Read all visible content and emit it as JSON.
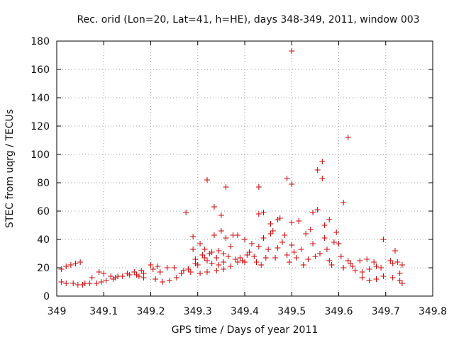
{
  "chart_data": {
    "type": "scatter",
    "title": "Rec. orid (Lon=20, Lat=41, h=HE), days 348-349, 2011, window 003",
    "xlabel": "GPS time / Days of year 2011",
    "ylabel": "STEC from uqrg / TECUs",
    "xlim": [
      349,
      349.8
    ],
    "ylim": [
      0,
      180
    ],
    "x_ticks": [
      349,
      349.1,
      349.2,
      349.3,
      349.4,
      349.5,
      349.6,
      349.7,
      349.8
    ],
    "x_tick_labels": [
      "349",
      "349.1",
      "349.2",
      "349.3",
      "349.4",
      "349.5",
      "349.6",
      "349.7",
      "349.8"
    ],
    "y_ticks": [
      0,
      20,
      40,
      60,
      80,
      100,
      120,
      140,
      160,
      180
    ],
    "y_tick_labels": [
      "0",
      "20",
      "40",
      "60",
      "80",
      "100",
      "120",
      "140",
      "160",
      "180"
    ],
    "grid": true,
    "marker": "+",
    "marker_color": "#cc0000",
    "points": [
      [
        349.01,
        19
      ],
      [
        349.01,
        10
      ],
      [
        349.02,
        21
      ],
      [
        349.02,
        9
      ],
      [
        349.03,
        22
      ],
      [
        349.035,
        9
      ],
      [
        349.04,
        23
      ],
      [
        349.045,
        8
      ],
      [
        349.05,
        24
      ],
      [
        349.055,
        8
      ],
      [
        349.06,
        9
      ],
      [
        349.07,
        9
      ],
      [
        349.075,
        13
      ],
      [
        349.085,
        9
      ],
      [
        349.09,
        17
      ],
      [
        349.095,
        10
      ],
      [
        349.1,
        16
      ],
      [
        349.105,
        11
      ],
      [
        349.115,
        14
      ],
      [
        349.12,
        12
      ],
      [
        349.125,
        13
      ],
      [
        349.13,
        14
      ],
      [
        349.14,
        14
      ],
      [
        349.15,
        16
      ],
      [
        349.155,
        15
      ],
      [
        349.165,
        17
      ],
      [
        349.17,
        15
      ],
      [
        349.175,
        14
      ],
      [
        349.18,
        18
      ],
      [
        349.185,
        16
      ],
      [
        349.185,
        13
      ],
      [
        349.2,
        22
      ],
      [
        349.205,
        19
      ],
      [
        349.21,
        12
      ],
      [
        349.215,
        21
      ],
      [
        349.22,
        17
      ],
      [
        349.225,
        10
      ],
      [
        349.235,
        20
      ],
      [
        349.24,
        11
      ],
      [
        349.25,
        20
      ],
      [
        349.255,
        13
      ],
      [
        349.265,
        16
      ],
      [
        349.27,
        18
      ],
      [
        349.275,
        59
      ],
      [
        349.28,
        19
      ],
      [
        349.285,
        17
      ],
      [
        349.29,
        33
      ],
      [
        349.29,
        42
      ],
      [
        349.295,
        26
      ],
      [
        349.295,
        23
      ],
      [
        349.3,
        22
      ],
      [
        349.305,
        37
      ],
      [
        349.305,
        16
      ],
      [
        349.31,
        29
      ],
      [
        349.315,
        33
      ],
      [
        349.315,
        27
      ],
      [
        349.32,
        82
      ],
      [
        349.32,
        25
      ],
      [
        349.32,
        17
      ],
      [
        349.325,
        30
      ],
      [
        349.33,
        31
      ],
      [
        349.33,
        23
      ],
      [
        349.335,
        63
      ],
      [
        349.335,
        43
      ],
      [
        349.34,
        27
      ],
      [
        349.34,
        18
      ],
      [
        349.345,
        32
      ],
      [
        349.345,
        22
      ],
      [
        349.35,
        57
      ],
      [
        349.35,
        46
      ],
      [
        349.355,
        24
      ],
      [
        349.355,
        30
      ],
      [
        349.355,
        19
      ],
      [
        349.36,
        77
      ],
      [
        349.36,
        41
      ],
      [
        349.365,
        28
      ],
      [
        349.37,
        35
      ],
      [
        349.37,
        21
      ],
      [
        349.375,
        43
      ],
      [
        349.38,
        26
      ],
      [
        349.385,
        43
      ],
      [
        349.385,
        24
      ],
      [
        349.39,
        27
      ],
      [
        349.395,
        25
      ],
      [
        349.4,
        40
      ],
      [
        349.4,
        24
      ],
      [
        349.405,
        29
      ],
      [
        349.41,
        31
      ],
      [
        349.415,
        37
      ],
      [
        349.42,
        28
      ],
      [
        349.425,
        24
      ],
      [
        349.43,
        77
      ],
      [
        349.43,
        58
      ],
      [
        349.43,
        35
      ],
      [
        349.435,
        22
      ],
      [
        349.44,
        59
      ],
      [
        349.44,
        41
      ],
      [
        349.445,
        27
      ],
      [
        349.45,
        33
      ],
      [
        349.455,
        51
      ],
      [
        349.455,
        44
      ],
      [
        349.46,
        46
      ],
      [
        349.465,
        27
      ],
      [
        349.47,
        54
      ],
      [
        349.47,
        34
      ],
      [
        349.475,
        55
      ],
      [
        349.48,
        38
      ],
      [
        349.485,
        43
      ],
      [
        349.49,
        83
      ],
      [
        349.49,
        29
      ],
      [
        349.495,
        24
      ],
      [
        349.5,
        173
      ],
      [
        349.5,
        79
      ],
      [
        349.5,
        52
      ],
      [
        349.5,
        36
      ],
      [
        349.505,
        31
      ],
      [
        349.51,
        27
      ],
      [
        349.515,
        53
      ],
      [
        349.52,
        33
      ],
      [
        349.525,
        22
      ],
      [
        349.53,
        44
      ],
      [
        349.535,
        26
      ],
      [
        349.54,
        47
      ],
      [
        349.545,
        59
      ],
      [
        349.545,
        37
      ],
      [
        349.55,
        28
      ],
      [
        349.555,
        89
      ],
      [
        349.555,
        61
      ],
      [
        349.56,
        30
      ],
      [
        349.565,
        95
      ],
      [
        349.565,
        83
      ],
      [
        349.57,
        50
      ],
      [
        349.57,
        41
      ],
      [
        349.575,
        33
      ],
      [
        349.58,
        54
      ],
      [
        349.58,
        25
      ],
      [
        349.585,
        22
      ],
      [
        349.59,
        38
      ],
      [
        349.595,
        45
      ],
      [
        349.6,
        37
      ],
      [
        349.605,
        28
      ],
      [
        349.61,
        66
      ],
      [
        349.61,
        20
      ],
      [
        349.62,
        112
      ],
      [
        349.62,
        25
      ],
      [
        349.625,
        23
      ],
      [
        349.63,
        21
      ],
      [
        349.635,
        18
      ],
      [
        349.645,
        25
      ],
      [
        349.65,
        17
      ],
      [
        349.65,
        13
      ],
      [
        349.66,
        26
      ],
      [
        349.665,
        19
      ],
      [
        349.665,
        11
      ],
      [
        349.675,
        24
      ],
      [
        349.68,
        21
      ],
      [
        349.68,
        12
      ],
      [
        349.69,
        20
      ],
      [
        349.695,
        40
      ],
      [
        349.695,
        14
      ],
      [
        349.71,
        25
      ],
      [
        349.715,
        23
      ],
      [
        349.715,
        13
      ],
      [
        349.72,
        32
      ],
      [
        349.725,
        24
      ],
      [
        349.73,
        16
      ],
      [
        349.73,
        11
      ],
      [
        349.735,
        22
      ],
      [
        349.735,
        9
      ]
    ]
  }
}
